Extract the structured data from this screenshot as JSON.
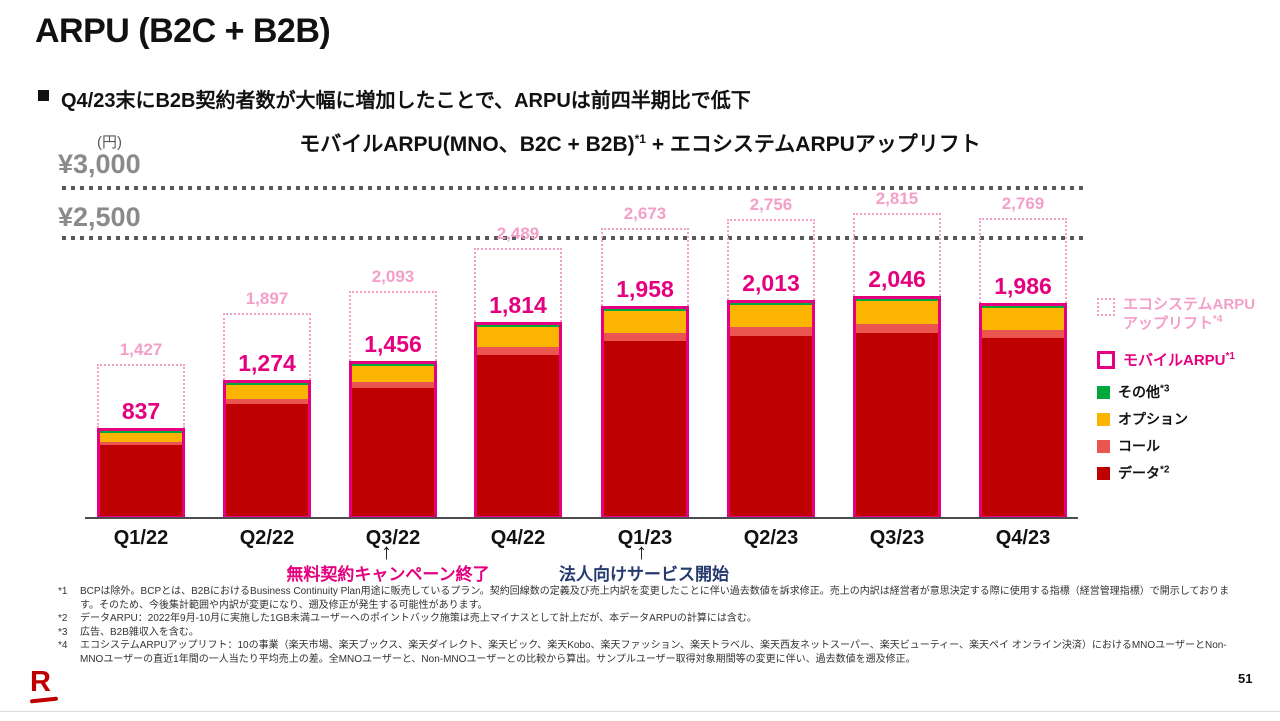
{
  "slide": {
    "title": "ARPU (B2C + B2B)",
    "bullet": "Q4/23末にB2B契約者数が大幅に増加したことで、ARPUは前四半期比で低下",
    "page_number": "51"
  },
  "chart": {
    "unit_label": "(円)",
    "title_main": "モバイルARPU(MNO、B2C + B2B)",
    "title_sup": "*1",
    "title_rest": " + エコシステムARPUアップリフト",
    "gridlines": [
      {
        "label": "¥3,000",
        "value": 3000
      },
      {
        "label": "¥2,500",
        "value": 2500
      }
    ]
  },
  "chart_data": {
    "type": "bar",
    "stacked": true,
    "title": "モバイルARPU(MNO、B2C + B2B)*1 + エコシステムARPUアップリフト",
    "unit": "円",
    "ylim": [
      0,
      3200
    ],
    "gridlines_y": [
      2500,
      3000
    ],
    "grid_style": "dotted",
    "legend_position": "right",
    "categories": [
      "Q1/22",
      "Q2/22",
      "Q3/22",
      "Q4/22",
      "Q1/23",
      "Q2/23",
      "Q3/23",
      "Q4/23"
    ],
    "series": [
      {
        "name": "モバイルARPU*1",
        "values": [
          837,
          1274,
          1456,
          1814,
          1958,
          2013,
          2046,
          1986
        ]
      },
      {
        "name": "エコシステムARPUアップリフト*4",
        "values": [
          590,
          623,
          637,
          675,
          715,
          743,
          769,
          783
        ]
      }
    ],
    "totals_with_uplift": [
      1427,
      1897,
      2093,
      2489,
      2673,
      2756,
      2815,
      2769
    ],
    "mobile_arpu_segments_bottom_to_top": [
      "データ*2",
      "コール",
      "オプション",
      "その他*3"
    ],
    "segment_fractions_estimate": {
      "データ*2": 0.835,
      "コール": 0.04,
      "オプション": 0.105,
      "その他*3": 0.02
    }
  },
  "legend": {
    "ecosystem": {
      "line1": "エコシステムARPU",
      "line2": "アップリフト",
      "sup": "*4"
    },
    "mobile": {
      "label": "モバイルARPU",
      "sup": "*1"
    },
    "items": [
      {
        "label": "その他",
        "sup": "*3",
        "color_key": "other_green"
      },
      {
        "label": "オプション",
        "sup": "",
        "color_key": "option_amber"
      },
      {
        "label": "コール",
        "sup": "",
        "color_key": "call_salmon"
      },
      {
        "label": "データ",
        "sup": "*2",
        "color_key": "data_red"
      }
    ]
  },
  "annotations": [
    {
      "arrow": "↑",
      "text": "無料契約キャンペーン終了",
      "target": "Q3/22"
    },
    {
      "arrow": "↑",
      "text": "法人向けサービス開始",
      "target": "Q1/23"
    }
  ],
  "footnotes": [
    {
      "marker": "*1",
      "text": "BCPは除外。BCPとは、B2BにおけるBusiness Continuity Plan用途に販売しているプラン。契約回線数の定義及び売上内訳を変更したことに伴い過去数値を訴求修正。売上の内訳は経営者が意思決定する際に使用する指標（経営管理指標）で開示しております。そのため、今後集計範囲や内訳が変更になり、遡及修正が発生する可能性があります。"
    },
    {
      "marker": "*2",
      "text": "データARPU：2022年9月-10月に実施した1GB未満ユーザーへのポイントバック施策は売上マイナスとして計上だが、本データARPUの計算には含む。"
    },
    {
      "marker": "*3",
      "text": "広告、B2B雑収入を含む。"
    },
    {
      "marker": "*4",
      "text": "エコシステムARPUアップリフト：10の事業（楽天市場、楽天ブックス、楽天ダイレクト、楽天ビック、楽天Kobo、楽天ファッション、楽天トラベル、楽天西友ネットスーパー、楽天ビューティー、楽天ペイ オンライン決済）におけるMNOユーザーとNon-MNOユーザーの直近1年間の一人当たり平均売上の差。全MNOユーザーと、Non-MNOユーザーとの比較から算出。サンプルユーザー取得対象期間等の変更に伴い、過去数値を遡及修正。"
    }
  ],
  "colors": {
    "magenta": "#E4007F",
    "light_pink": "#F49FC8",
    "data_red": "#BF0000",
    "call_salmon": "#EA5550",
    "option_amber": "#FBB500",
    "other_green": "#00A73C",
    "annotation_navy": "#253A6D",
    "axis_gray": "#4D4D4D",
    "ylabel_gray": "#8A8A8A"
  },
  "logo": {
    "glyph": "R",
    "name": "rakuten-logo"
  }
}
